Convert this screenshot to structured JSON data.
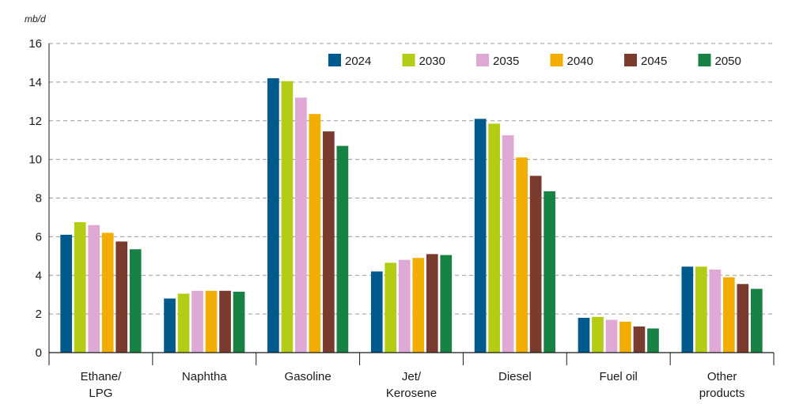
{
  "chart_data": {
    "type": "bar",
    "unit_label": "mb/d",
    "categories": [
      "Ethane/ LPG",
      "Naphtha",
      "Gasoline",
      "Jet/ Kerosene",
      "Diesel",
      "Fuel oil",
      "Other products"
    ],
    "category_lines": [
      [
        "Ethane/",
        "LPG"
      ],
      [
        "Naphtha"
      ],
      [
        "Gasoline"
      ],
      [
        "Jet/",
        "Kerosene"
      ],
      [
        "Diesel"
      ],
      [
        "Fuel oil"
      ],
      [
        "Other",
        "products"
      ]
    ],
    "series": [
      {
        "name": "2024",
        "color": "#005a8c",
        "values": [
          6.1,
          2.8,
          14.2,
          4.2,
          12.1,
          1.8,
          4.45
        ]
      },
      {
        "name": "2030",
        "color": "#b5cc14",
        "values": [
          6.75,
          3.05,
          14.05,
          4.65,
          11.85,
          1.85,
          4.45
        ]
      },
      {
        "name": "2035",
        "color": "#dfa9d6",
        "values": [
          6.6,
          3.2,
          13.2,
          4.8,
          11.25,
          1.7,
          4.3
        ]
      },
      {
        "name": "2040",
        "color": "#f2ae00",
        "values": [
          6.2,
          3.2,
          12.35,
          4.9,
          10.1,
          1.6,
          3.9
        ]
      },
      {
        "name": "2045",
        "color": "#7a3b2e",
        "values": [
          5.75,
          3.2,
          11.45,
          5.1,
          9.15,
          1.35,
          3.55
        ]
      },
      {
        "name": "2050",
        "color": "#178244",
        "values": [
          5.35,
          3.15,
          10.7,
          5.05,
          8.35,
          1.25,
          3.3
        ]
      }
    ],
    "ylim": [
      0,
      16
    ],
    "yticks": [
      0,
      2,
      4,
      6,
      8,
      10,
      12,
      14,
      16
    ],
    "grid": "horizontal dashed",
    "legend_position": "top-right"
  }
}
